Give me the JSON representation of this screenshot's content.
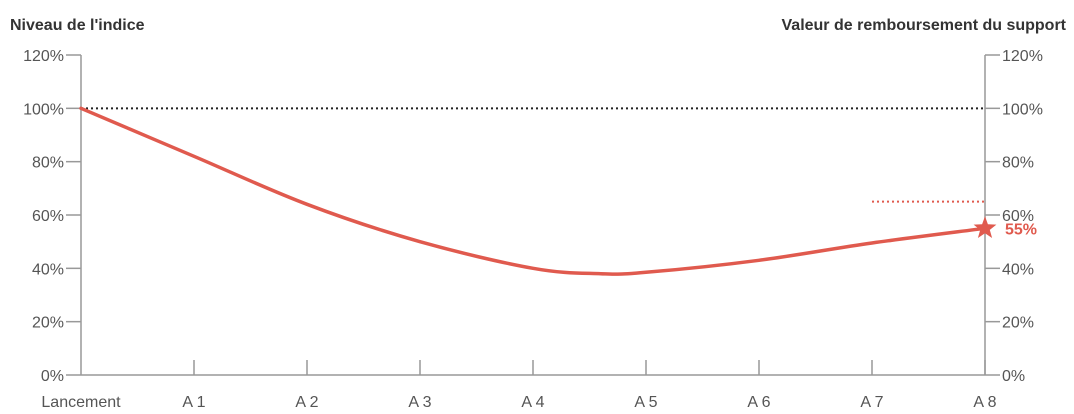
{
  "chart_data": {
    "type": "line",
    "left_axis_title": "Niveau de l'indice",
    "right_axis_title": "Valeur de remboursement du support",
    "x_categories": [
      "Lancement",
      "A 1",
      "A 2",
      "A 3",
      "A 4",
      "A 5",
      "A 6",
      "A 7",
      "A 8"
    ],
    "y_ticks": [
      "0%",
      "20%",
      "40%",
      "60%",
      "80%",
      "100%",
      "120%"
    ],
    "y_tick_values": [
      0,
      20,
      40,
      60,
      80,
      100,
      120
    ],
    "ylim": [
      0,
      120
    ],
    "series": [
      {
        "x": [
          0,
          1,
          2,
          3,
          4,
          4.6,
          5,
          6,
          7,
          8
        ],
        "y": [
          100,
          82,
          64,
          50,
          40,
          38,
          38.5,
          43,
          49.5,
          55
        ]
      }
    ],
    "reference_line": {
      "y": 100,
      "style": "dotted"
    },
    "barrier_line": {
      "y": 65,
      "x_start": 7,
      "x_end": 8,
      "style": "dotted"
    },
    "final_value": {
      "x": 8,
      "y": 55,
      "label": "55%",
      "marker": "star"
    },
    "colors": {
      "series": "#e05a4e",
      "axis": "#999999",
      "reference": "#222222",
      "text": "#333333"
    }
  }
}
